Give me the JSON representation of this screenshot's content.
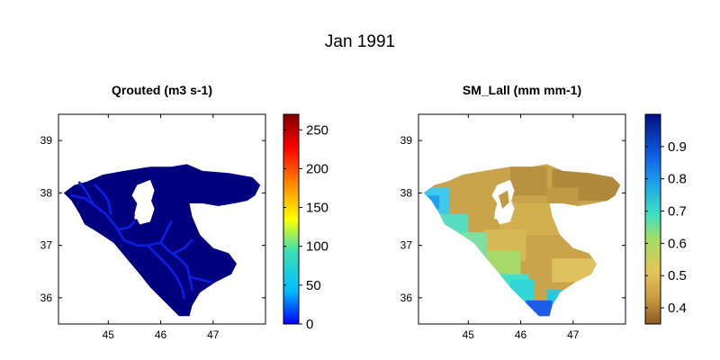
{
  "figure": {
    "title": "Jan 1991"
  },
  "chart_data": [
    {
      "type": "heatmap",
      "title": "Qrouted (m3 s-1)",
      "xlabel": "",
      "ylabel": "",
      "xlim": [
        44.05,
        48.0
      ],
      "ylim": [
        35.5,
        39.5
      ],
      "xticks": [
        45,
        46,
        47
      ],
      "yticks": [
        36,
        37,
        38,
        39
      ],
      "colorbar": {
        "colormap": "jet",
        "range": [
          0,
          270
        ],
        "ticks": [
          0,
          50,
          100,
          150,
          200,
          250
        ]
      },
      "field_summary": {
        "background_value": 0,
        "background_color": "#000080",
        "river_channel_value_range": [
          1,
          20
        ],
        "river_channel_color": "#0a1fe0"
      }
    },
    {
      "type": "heatmap",
      "title": "SM_Lall (mm mm-1)",
      "xlabel": "",
      "ylabel": "",
      "xlim": [
        44.05,
        48.0
      ],
      "ylim": [
        35.5,
        39.5
      ],
      "xticks": [
        45,
        46,
        47
      ],
      "yticks": [
        36,
        37,
        38,
        39
      ],
      "colorbar": {
        "colormap": "brown-yellow-green-cyan-blue",
        "range": [
          0.35,
          1.0
        ],
        "ticks": [
          0.4,
          0.5,
          0.6,
          0.7,
          0.8,
          0.9
        ]
      },
      "field_summary": {
        "northeast_value_range": [
          0.38,
          0.45
        ],
        "center_value_range": [
          0.45,
          0.5
        ],
        "southwest_coast_value_range": [
          0.6,
          0.75
        ],
        "south_tip_value_range": [
          0.8,
          0.85
        ]
      }
    }
  ]
}
